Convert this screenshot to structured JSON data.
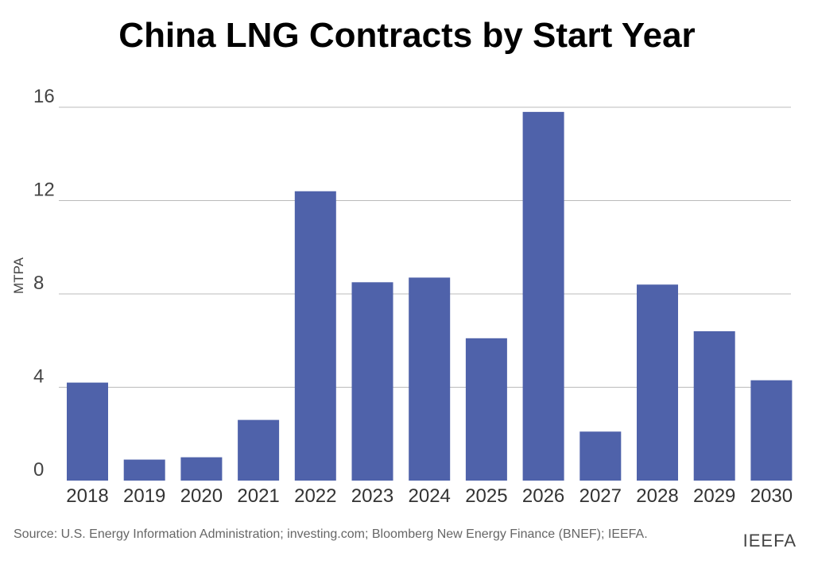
{
  "chart_data": {
    "type": "bar",
    "title": "China LNG Contracts by Start Year",
    "xlabel": "",
    "ylabel": "MTPA",
    "ylim": [
      0,
      16
    ],
    "yticks": [
      0,
      4,
      8,
      12,
      16
    ],
    "categories": [
      "2018",
      "2019",
      "2020",
      "2021",
      "2022",
      "2023",
      "2024",
      "2025",
      "2026",
      "2027",
      "2028",
      "2029",
      "2030"
    ],
    "values": [
      4.2,
      0.9,
      1.0,
      2.6,
      12.4,
      8.5,
      8.7,
      6.1,
      15.8,
      2.1,
      8.4,
      6.4,
      4.3
    ],
    "bar_color": "#4f62aa",
    "grid": true,
    "legend": "none"
  },
  "footer": {
    "source": "Source: U.S. Energy Information Administration; investing.com; Bloomberg New Energy Finance (BNEF); IEEFA.",
    "brand": "IEEFA"
  }
}
